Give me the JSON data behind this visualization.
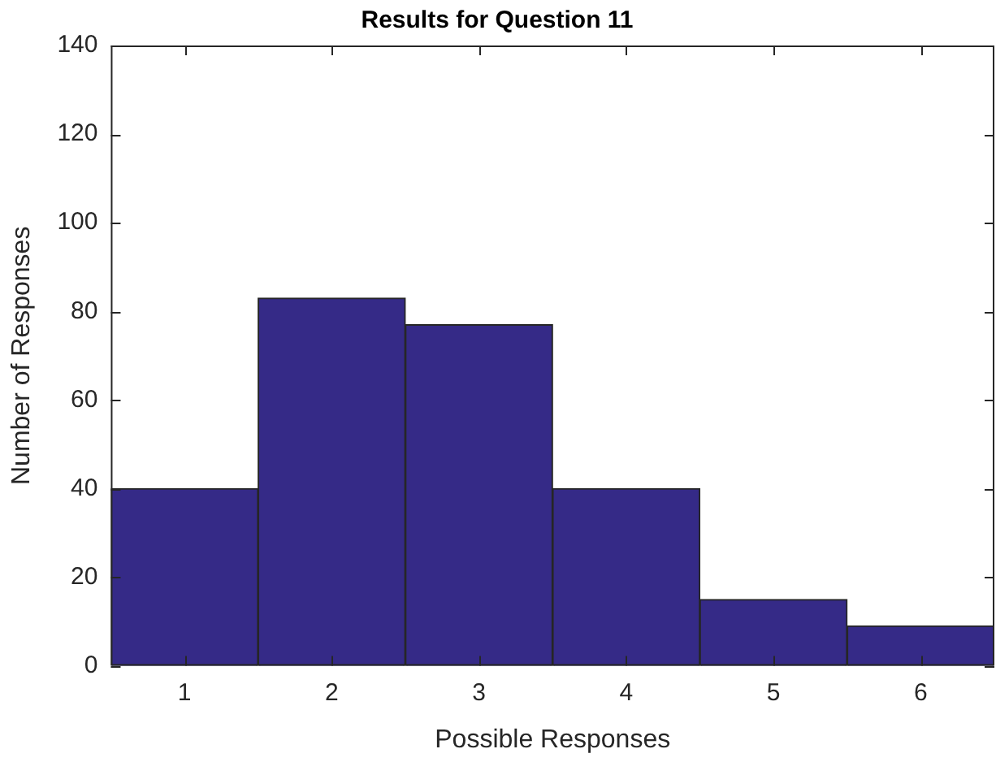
{
  "chart_data": {
    "type": "bar",
    "title": "Results for Question 11",
    "xlabel": "Possible Responses",
    "ylabel": "Number of Responses",
    "categories": [
      "1",
      "2",
      "3",
      "4",
      "5",
      "6"
    ],
    "values": [
      40,
      83,
      77,
      40,
      15,
      9
    ],
    "color": "#352a87",
    "ylim": [
      0,
      140
    ],
    "yticks": [
      0,
      20,
      40,
      60,
      80,
      100,
      120,
      140
    ],
    "grid": false
  }
}
